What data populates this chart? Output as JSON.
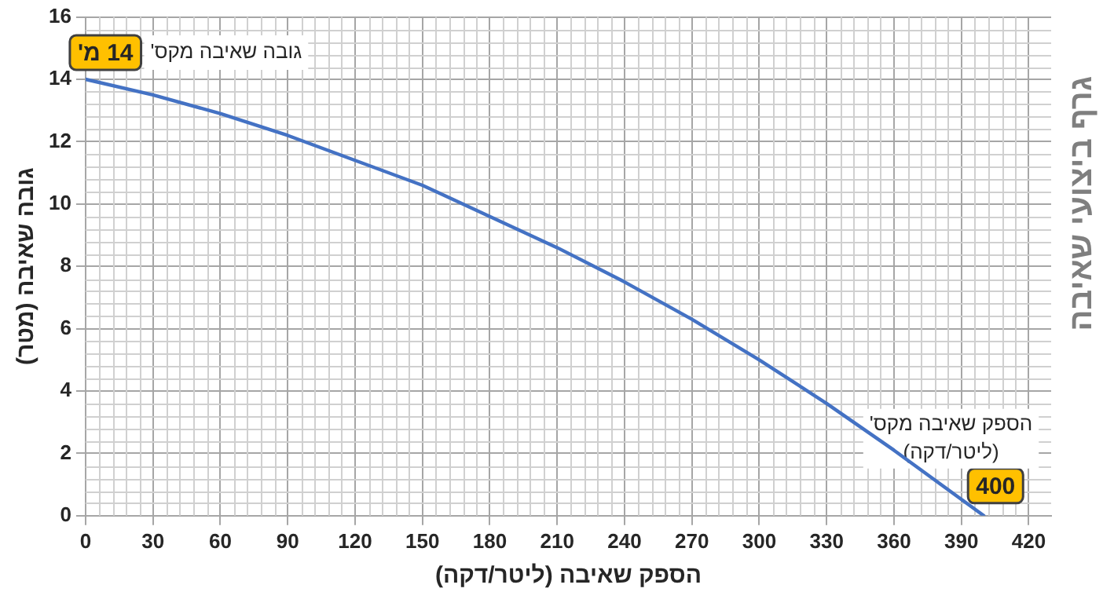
{
  "chart_data": {
    "type": "line",
    "title": "גרף ביצועי שאיבה",
    "xlabel": "הספק שאיבה (ליטר/דקה)",
    "ylabel": "גובה שאיבה (מטר)",
    "x": [
      0,
      30,
      60,
      90,
      120,
      150,
      180,
      210,
      240,
      270,
      300,
      330,
      360,
      400
    ],
    "series": [
      {
        "color": "#4472c4",
        "values": [
          14,
          13.5,
          12.9,
          12.2,
          11.4,
          10.6,
          9.6,
          8.6,
          7.5,
          6.3,
          5.0,
          3.6,
          2.1,
          0
        ]
      }
    ],
    "xlim": [
      0,
      430
    ],
    "xticks": [
      0,
      30,
      60,
      90,
      120,
      150,
      180,
      210,
      240,
      270,
      300,
      330,
      360,
      390,
      420
    ],
    "ylim": [
      0,
      16
    ],
    "yticks": [
      0,
      2,
      4,
      6,
      8,
      10,
      12,
      14,
      16
    ],
    "grid": true,
    "legend": false,
    "marker": "none",
    "line_style": "solid",
    "annotations": [
      {
        "text": "14 מ'",
        "x": 0,
        "y": 14
      },
      "גובה שאיבה מקס'",
      "הספק שאיבה מקס' (ליטר/דקה)",
      {
        "text": "400",
        "x": 400,
        "y": 0
      }
    ]
  }
}
